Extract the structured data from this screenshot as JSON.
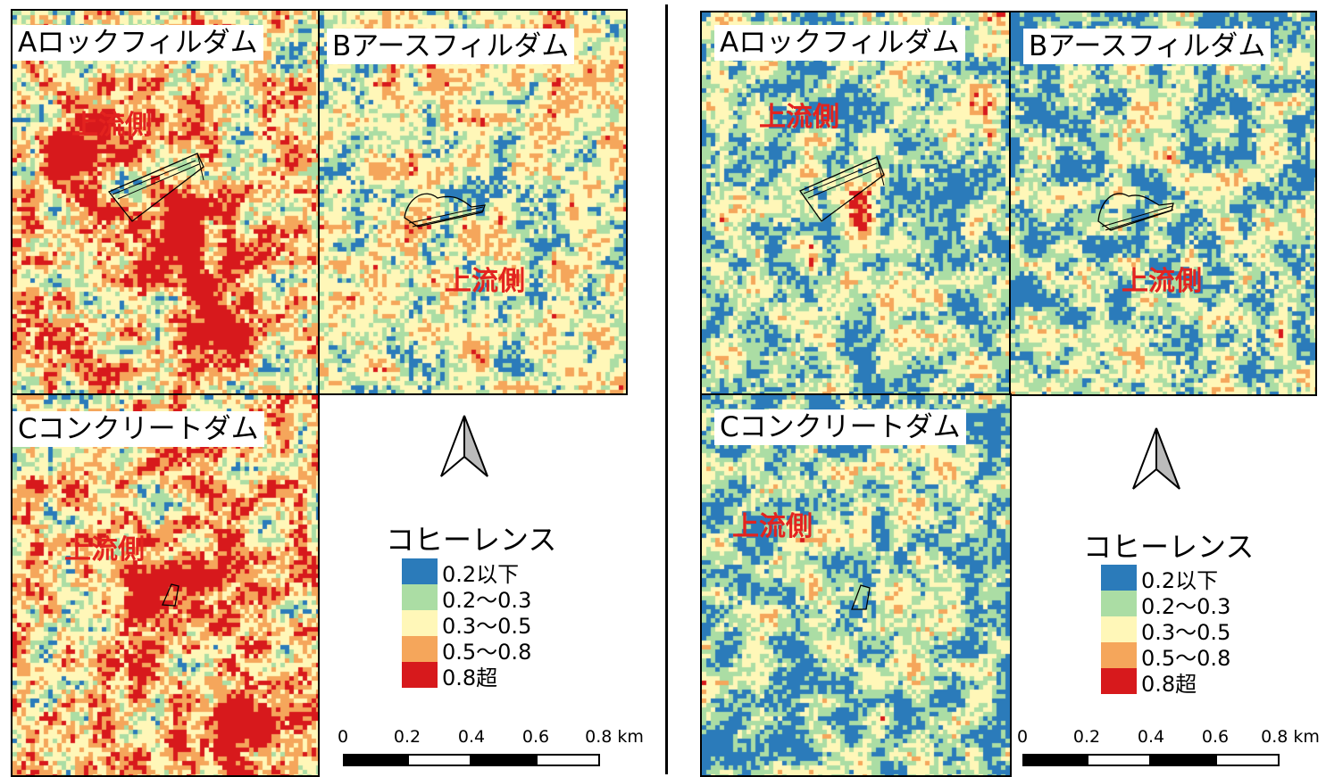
{
  "colors": {
    "c1": "#2b7bba",
    "c2": "#abdda4",
    "c3": "#fff7b8",
    "c4": "#f5a65b",
    "c5": "#d7191c",
    "upstream_text": "#e3231f"
  },
  "panels": {
    "left": {
      "map_a": {
        "title": "Aロックフィルダム",
        "upstream": "上流側"
      },
      "map_b": {
        "title": "Bアースフィルダム",
        "upstream": "上流側"
      },
      "map_c": {
        "title": "Cコンクリートダム",
        "upstream": "上流側"
      },
      "legend": {
        "title": "コヒーレンス",
        "items": [
          "0.2以下",
          "0.2〜0.3",
          "0.3〜0.5",
          "0.5〜0.8",
          "0.8超"
        ]
      },
      "scale": {
        "ticks": [
          "0",
          "0.2",
          "0.4",
          "0.6",
          "0.8 km"
        ]
      }
    },
    "right": {
      "map_a": {
        "title": "Aロックフィルダム",
        "upstream": "上流側"
      },
      "map_b": {
        "title": "Bアースフィルダム",
        "upstream": "上流側"
      },
      "map_c": {
        "title": "Cコンクリートダム",
        "upstream": "上流側"
      },
      "legend": {
        "title": "コヒーレンス",
        "items": [
          "0.2以下",
          "0.2〜0.3",
          "0.3〜0.5",
          "0.5〜0.8",
          "0.8超"
        ]
      },
      "scale": {
        "ticks": [
          "0",
          "0.2",
          "0.4",
          "0.6",
          "0.8 km"
        ]
      }
    }
  }
}
